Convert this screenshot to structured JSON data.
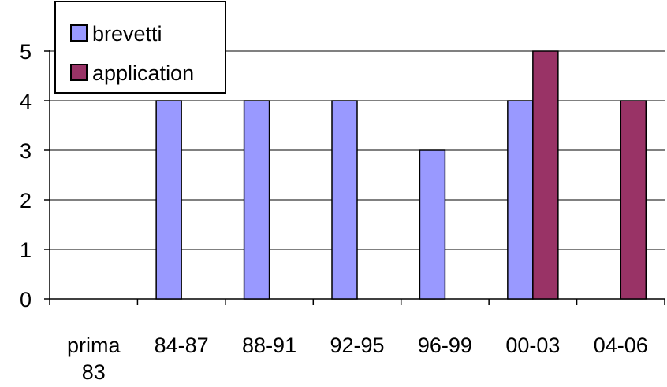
{
  "chart_data": {
    "type": "bar",
    "title": "",
    "xlabel": "",
    "ylabel": "",
    "categories": [
      "prima 83",
      "84-87",
      "88-91",
      "92-95",
      "96-99",
      "00-03",
      "04-06"
    ],
    "category_lines": [
      [
        "prima",
        "83"
      ],
      [
        "84-87"
      ],
      [
        "88-91"
      ],
      [
        "92-95"
      ],
      [
        "96-99"
      ],
      [
        "00-03"
      ],
      [
        "04-06"
      ]
    ],
    "series": [
      {
        "name": "brevetti",
        "color": "#9999ff",
        "values": [
          0,
          4,
          4,
          4,
          3,
          4,
          0
        ]
      },
      {
        "name": "application",
        "color": "#993366",
        "values": [
          0,
          0,
          0,
          0,
          0,
          5,
          4
        ]
      }
    ],
    "ylim": [
      0,
      5
    ],
    "yticks": [
      "0",
      "1",
      "2",
      "3",
      "4",
      "5"
    ],
    "grid": true,
    "legend_position": "top-left"
  }
}
